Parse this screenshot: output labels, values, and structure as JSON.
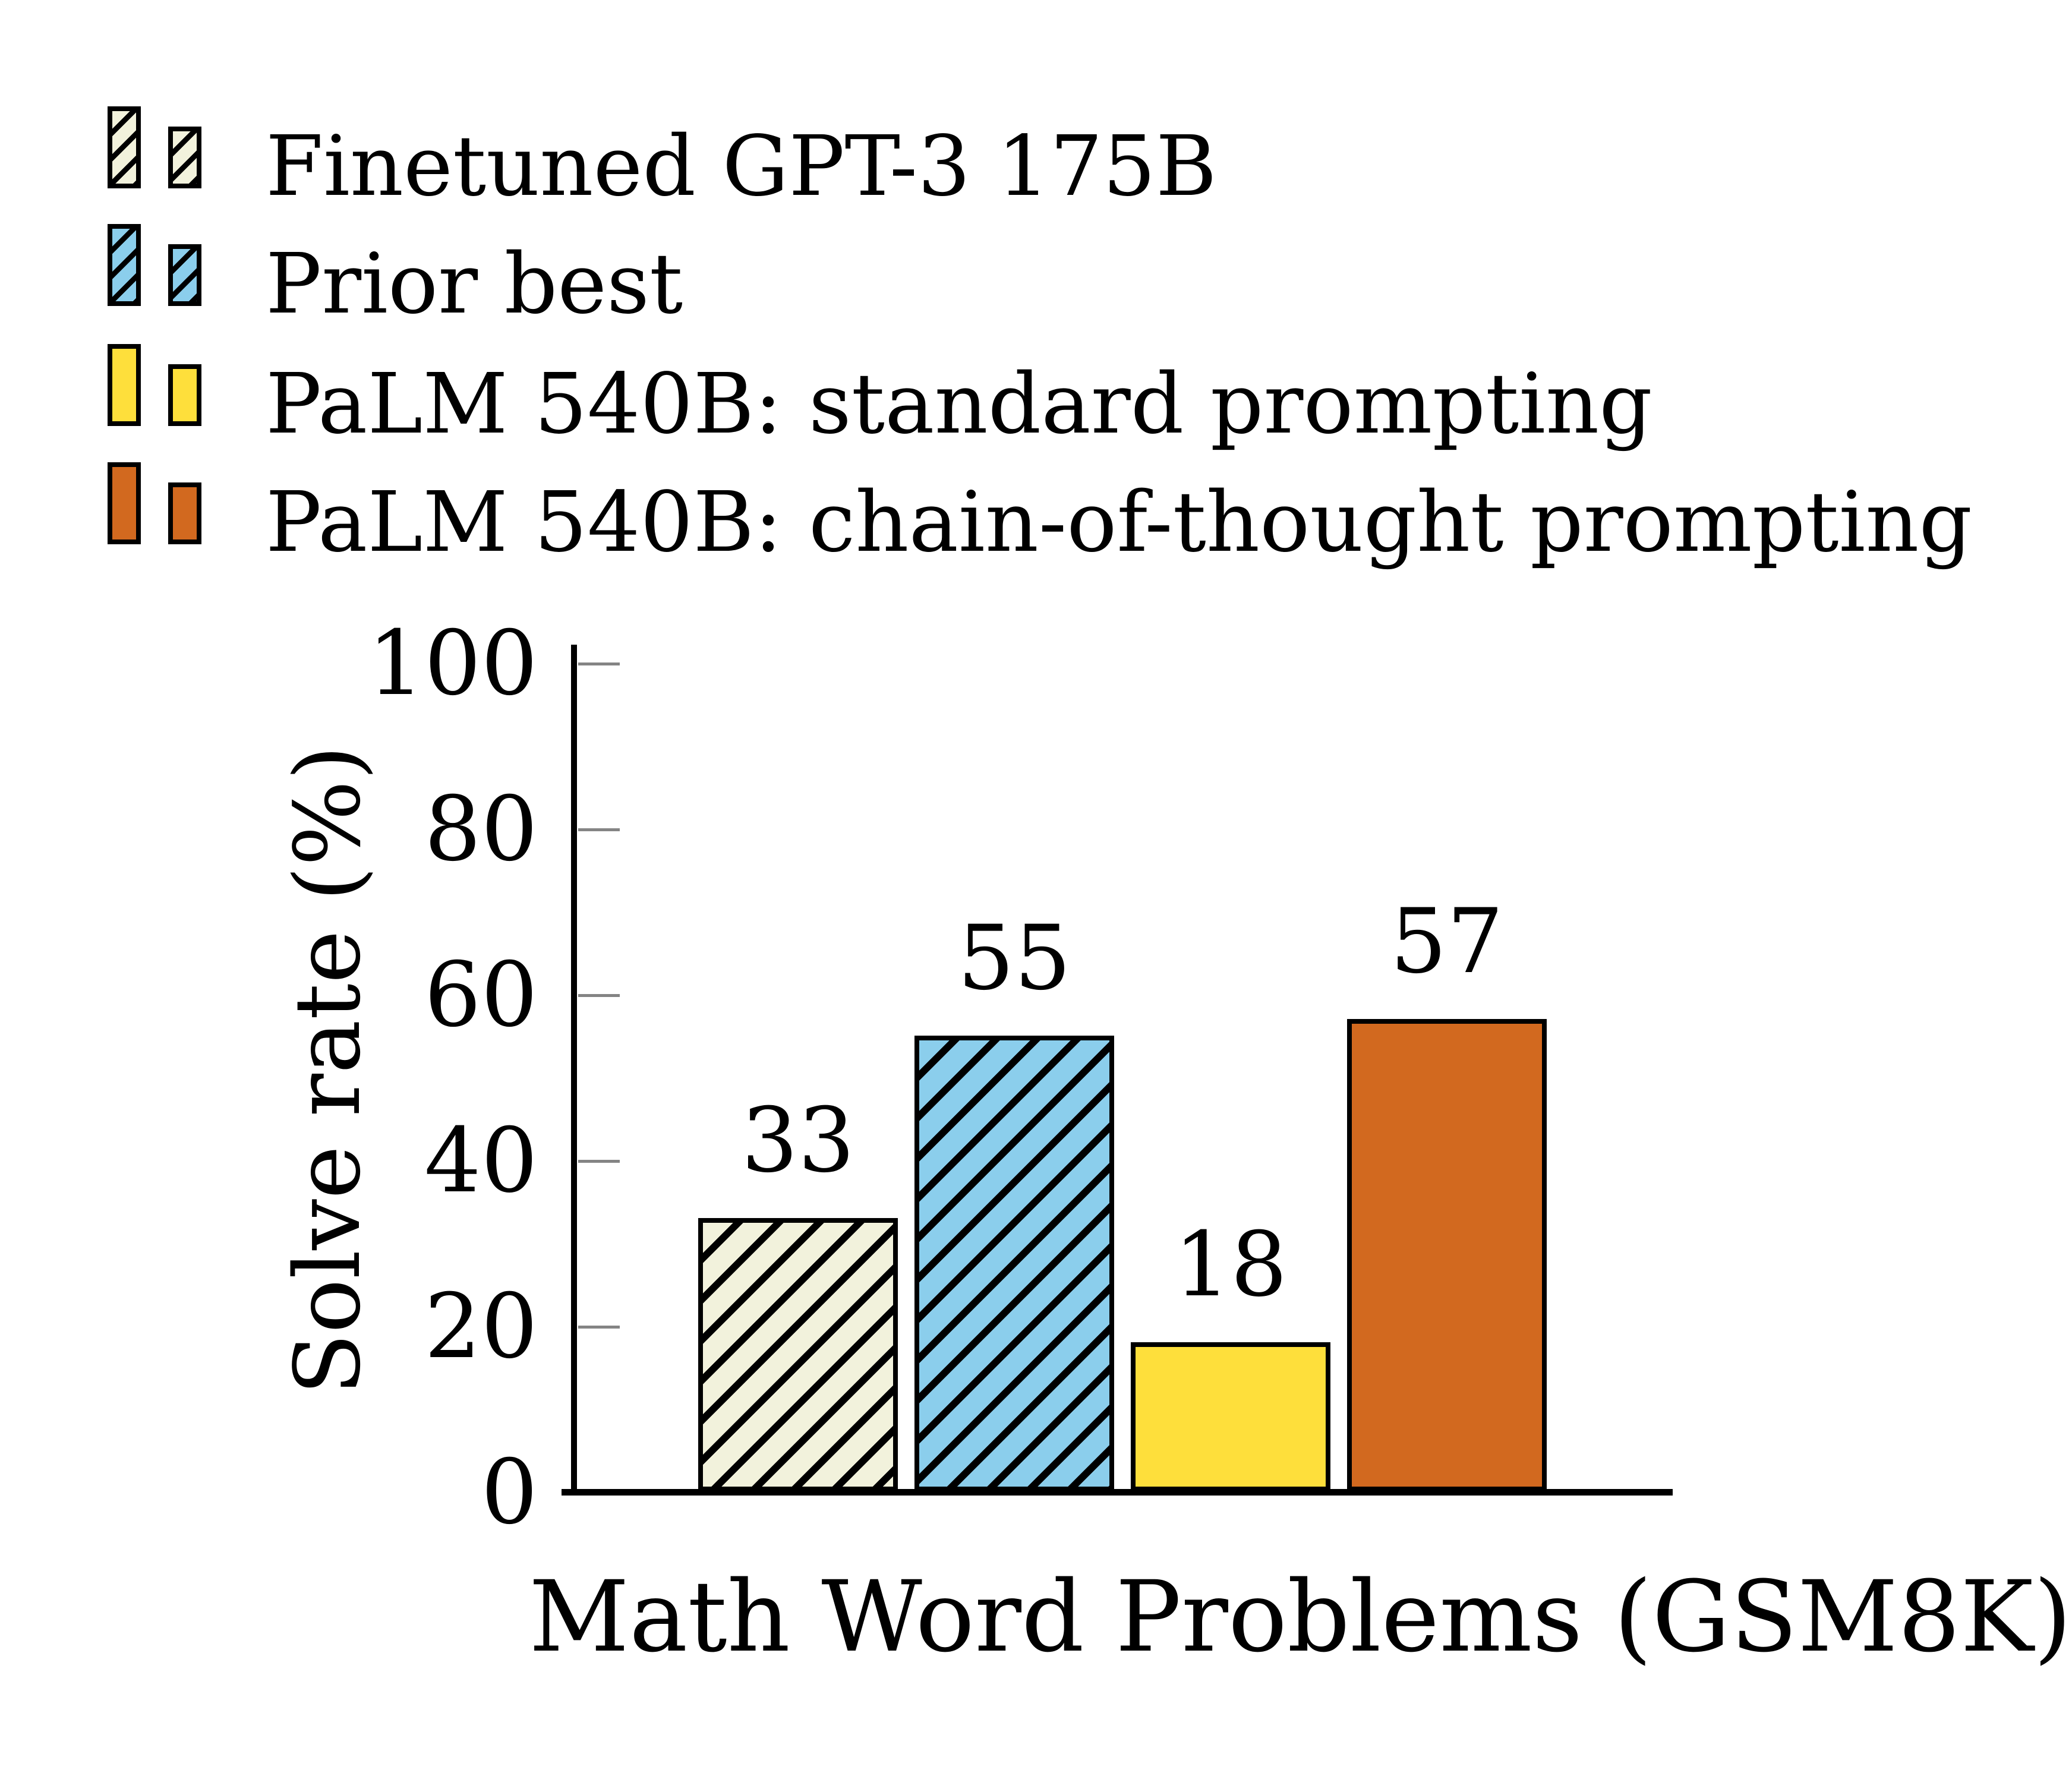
{
  "chart_data": {
    "type": "bar",
    "title": "",
    "xlabel": "Math Word Problems (GSM8K)",
    "ylabel": "Solve rate (%)",
    "ylim": [
      0,
      100
    ],
    "yticks": [
      0,
      20,
      40,
      60,
      80,
      100
    ],
    "grid": false,
    "legend_position": "top-left",
    "categories": [
      "Math Word Problems (GSM8K)"
    ],
    "series": [
      {
        "name": "Finetuned GPT-3 175B",
        "values": [
          33
        ],
        "label": "33",
        "fill": "#F2F2DC",
        "hatch": true
      },
      {
        "name": "Prior best",
        "values": [
          55
        ],
        "label": "55",
        "fill": "#8BCEEC",
        "hatch": true
      },
      {
        "name": "PaLM 540B: standard prompting",
        "values": [
          18
        ],
        "label": "18",
        "fill": "#FEDF3B",
        "hatch": false
      },
      {
        "name": "PaLM 540B: chain-of-thought prompting",
        "values": [
          57
        ],
        "label": "57",
        "fill": "#D2691F",
        "hatch": false
      }
    ]
  },
  "colors": {
    "axis": "#000000",
    "tick": "#848484",
    "hatch_line": "#000000",
    "background": "#ffffff"
  }
}
